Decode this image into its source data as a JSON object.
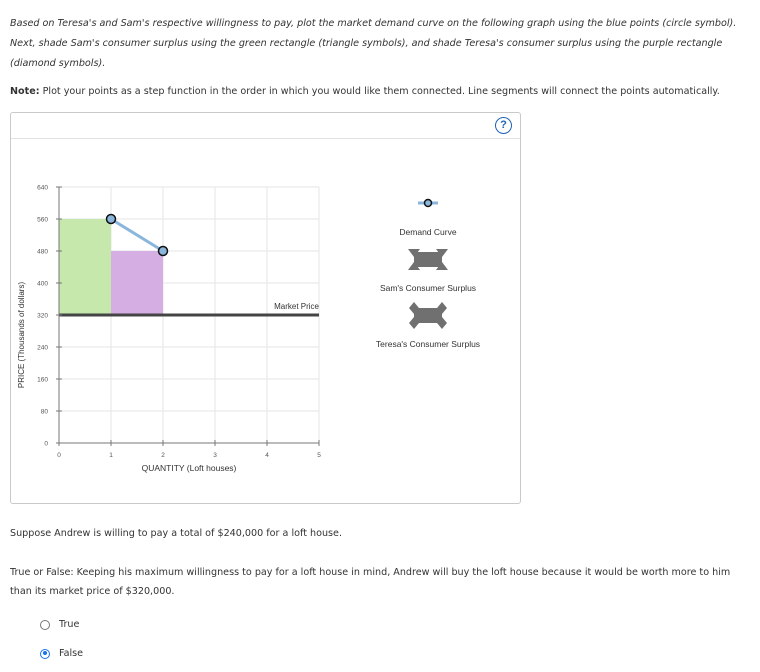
{
  "instructions": {
    "main": "Based on Teresa's and Sam's respective willingness to pay, plot the market demand curve on the following graph using the blue points (circle symbol). Next, shade Sam's consumer surplus using the green rectangle (triangle symbols), and shade Teresa's consumer surplus using the purple rectangle (diamond symbols).",
    "note_label": "Note:",
    "note_text": " Plot your points as a step function in the order in which you would like them connected. Line segments will connect the points automatically."
  },
  "help_button": "?",
  "chart_data": {
    "type": "line",
    "xlabel": "QUANTITY (Loft houses)",
    "ylabel": "PRICE (Thousands of dollars)",
    "xlim": [
      0,
      5
    ],
    "ylim": [
      0,
      640
    ],
    "x_ticks": [
      0,
      1,
      2,
      3,
      4,
      5
    ],
    "y_ticks": [
      0,
      80,
      160,
      240,
      320,
      400,
      480,
      560,
      640
    ],
    "grid": true,
    "demand_points": [
      [
        1,
        560
      ],
      [
        2,
        480
      ]
    ],
    "market_price": 320,
    "market_price_label": "Market Price",
    "sams_surplus_rect": {
      "x0": 0,
      "x1": 1,
      "y0": 320,
      "y1": 560,
      "color": "#c6e8ad"
    },
    "teresas_surplus_rect": {
      "x0": 1,
      "x1": 2,
      "y0": 320,
      "y1": 480,
      "color": "#d5aee4"
    },
    "demand_color": "#8ab6dc",
    "legend": [
      "Demand Curve",
      "Sam's Consumer Surplus",
      "Teresa's Consumer Surplus"
    ]
  },
  "questions": {
    "scenario": "Suppose Andrew is willing to pay a total of $240,000 for a loft house.",
    "prompt": "True or False: Keeping his maximum willingness to pay for a loft house in mind, Andrew will buy the loft house because it would be worth more to him than its market price of $320,000.",
    "options": [
      {
        "label": "True",
        "selected": false
      },
      {
        "label": "False",
        "selected": true
      }
    ]
  }
}
